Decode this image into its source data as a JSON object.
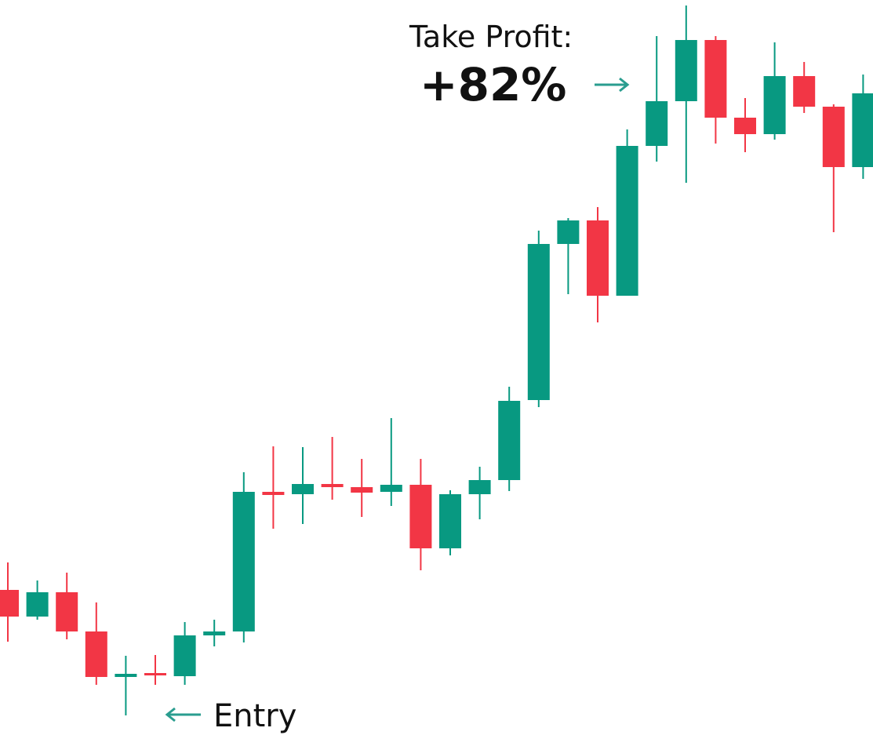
{
  "chart_data": {
    "type": "candlestick",
    "annotations": [
      "Take Profit:",
      "+82%",
      "Entry"
    ],
    "up_color": "#089981",
    "down_color": "#f23645",
    "categories": [
      null,
      null,
      null,
      null,
      null,
      null,
      null,
      null,
      null,
      null,
      null,
      null,
      null,
      null,
      null,
      null,
      null,
      null,
      null,
      null,
      null,
      null,
      null,
      null,
      null,
      null,
      null,
      null,
      null,
      null
    ],
    "open": [
      102.5,
      99.1,
      102.2,
      97.2,
      91.4,
      91.9,
      91.5,
      96.7,
      97.2,
      115.0,
      114.7,
      116.0,
      115.6,
      115.0,
      115.9,
      107.8,
      114.7,
      116.5,
      126.7,
      146.6,
      149.6,
      140.0,
      159.1,
      164.8,
      172.6,
      162.7,
      160.6,
      168.0,
      164.1,
      156.4
    ],
    "high": [
      106.0,
      103.7,
      104.7,
      100.9,
      94.1,
      94.2,
      98.4,
      98.7,
      117.5,
      120.8,
      120.7,
      122.0,
      119.2,
      124.4,
      119.2,
      115.2,
      118.2,
      128.4,
      148.3,
      149.9,
      151.3,
      161.2,
      173.1,
      177.0,
      173.1,
      165.2,
      172.3,
      169.8,
      164.4,
      168.2
    ],
    "low": [
      95.9,
      98.7,
      96.2,
      90.4,
      86.5,
      90.4,
      90.4,
      95.3,
      95.8,
      110.3,
      110.9,
      114.0,
      111.8,
      113.2,
      105.0,
      106.9,
      111.5,
      115.1,
      125.8,
      140.2,
      136.6,
      140.0,
      157.1,
      154.4,
      159.4,
      158.3,
      159.9,
      163.3,
      148.1,
      154.9
    ],
    "close": [
      99.1,
      102.2,
      97.2,
      91.4,
      91.8,
      91.6,
      96.7,
      97.2,
      115.0,
      114.6,
      116.0,
      115.6,
      114.9,
      115.9,
      107.8,
      114.7,
      116.5,
      126.6,
      146.6,
      149.6,
      140.0,
      159.1,
      164.8,
      172.6,
      162.7,
      160.6,
      168.0,
      164.1,
      156.4,
      165.8
    ],
    "ylim": [
      82.6,
      177.7
    ]
  }
}
